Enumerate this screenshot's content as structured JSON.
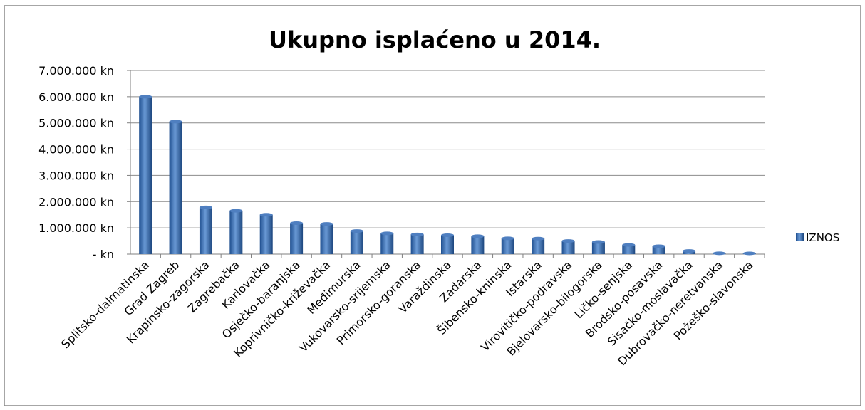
{
  "chart_data": {
    "type": "bar",
    "title": "Ukupno isplaćeno u 2014.",
    "xlabel": "",
    "ylabel": "",
    "ylim": [
      0,
      7000000
    ],
    "y_ticks": [
      0,
      1000000,
      2000000,
      3000000,
      4000000,
      5000000,
      6000000,
      7000000
    ],
    "y_tick_labels": [
      "- kn",
      "1.000.000 kn",
      "2.000.000 kn",
      "3.000.000 kn",
      "4.000.000 kn",
      "5.000.000 kn",
      "6.000.000 kn",
      "7.000.000 kn"
    ],
    "grid": true,
    "legend_position": "right",
    "bar_color": "#2e5f9e",
    "categories": [
      "Splitsko-dalmatinska",
      "Grad Zagreb",
      "Krapinsko-zagorska",
      "Zagrebačka",
      "Karlovačka",
      "Osječko-baranjska",
      "Koprivničko-križevačka",
      "Međimurska",
      "Vukovarsko-srijemska",
      "Primorsko-goranska",
      "Varaždinska",
      "Zadarska",
      "Šibensko-kninska",
      "Istarska",
      "Virovitičko-podravska",
      "Bjelovarsko-bilogorska",
      "Ličko-senjska",
      "Brodsko-posavska",
      "Sisačko-moslavačka",
      "Dubrovačko-neretvanska",
      "Požeško-slavonska"
    ],
    "series": [
      {
        "name": "IZNOS",
        "values": [
          6000000,
          5050000,
          1780000,
          1650000,
          1500000,
          1180000,
          1150000,
          880000,
          790000,
          750000,
          720000,
          680000,
          600000,
          590000,
          500000,
          460000,
          350000,
          300000,
          120000,
          30000,
          5000
        ]
      }
    ]
  }
}
